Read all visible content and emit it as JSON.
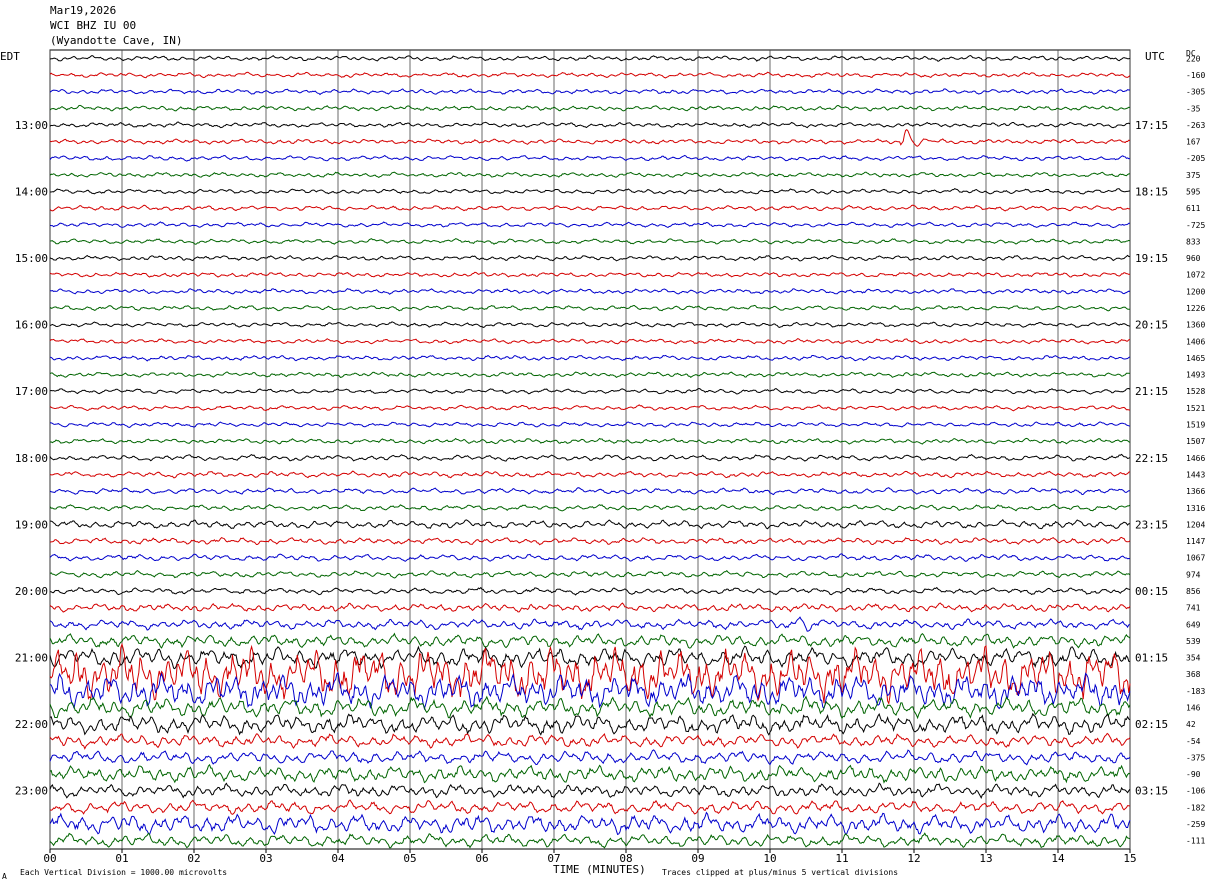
{
  "header": {
    "date": "Mar19,2026",
    "station": "WCI BHZ IU 00",
    "location": "(Wyandotte Cave, IN)"
  },
  "left_tz": "EDT",
  "right_tz": "UTC",
  "dc_label": "DC",
  "footer": {
    "scale_note": "Each Vertical Division = 1000.00 microvolts",
    "clip_note": "Traces clipped at plus/minus 5 vertical divisions",
    "corner_mark": "A"
  },
  "chart_data": {
    "type": "line",
    "title": "",
    "xlabel": "TIME (MINUTES)",
    "ylabel": "",
    "xlim": [
      0,
      15
    ],
    "x_ticks": [
      "00",
      "01",
      "02",
      "03",
      "04",
      "05",
      "06",
      "07",
      "08",
      "09",
      "10",
      "11",
      "12",
      "13",
      "14",
      "15"
    ],
    "rows_per_hour": 4,
    "num_traces": 48,
    "trace_colors": [
      "#000000",
      "#d40000",
      "#0000cc",
      "#006400"
    ],
    "left_hour_labels": [
      "13:00",
      "14:00",
      "15:00",
      "16:00",
      "17:00",
      "18:00",
      "19:00",
      "20:00",
      "21:00",
      "22:00",
      "23:00"
    ],
    "right_hour_labels": [
      "17:15",
      "18:15",
      "19:15",
      "20:15",
      "21:15",
      "22:15",
      "23:15",
      "00:15",
      "01:15",
      "02:15",
      "03:15"
    ],
    "dc_offsets": [
      "220",
      "-160",
      "-305",
      "-35",
      "-263",
      "167",
      "-205",
      "375",
      "595",
      "611",
      "-725",
      "833",
      "960",
      "1072",
      "1200",
      "1226",
      "1360",
      "1406",
      "1465",
      "1493",
      "1528",
      "1521",
      "1519",
      "1507",
      "1466",
      "1443",
      "1366",
      "1316",
      "1204",
      "1147",
      "1067",
      "974",
      "856",
      "741",
      "649",
      "539",
      "354",
      "368",
      "-183",
      "146",
      "42",
      "-54",
      "-375",
      "-90",
      "-106",
      "-182",
      "-259",
      "-111"
    ],
    "events": [
      {
        "row": 5,
        "minute": 11.85,
        "amplitude_divisions": 2.0,
        "note": "local event burst"
      },
      {
        "row": 34,
        "minute": 10.35,
        "amplitude_divisions": 1.2,
        "note": "small burst"
      }
    ],
    "noise_level_by_row": [
      0.15,
      0.15,
      0.15,
      0.15,
      0.15,
      0.15,
      0.15,
      0.15,
      0.15,
      0.15,
      0.15,
      0.15,
      0.15,
      0.15,
      0.15,
      0.15,
      0.15,
      0.15,
      0.15,
      0.15,
      0.15,
      0.15,
      0.15,
      0.15,
      0.18,
      0.18,
      0.18,
      0.18,
      0.25,
      0.2,
      0.2,
      0.2,
      0.2,
      0.25,
      0.3,
      0.4,
      0.6,
      1.6,
      1.0,
      0.6,
      0.6,
      0.4,
      0.4,
      0.5,
      0.4,
      0.4,
      0.6,
      0.4
    ]
  }
}
